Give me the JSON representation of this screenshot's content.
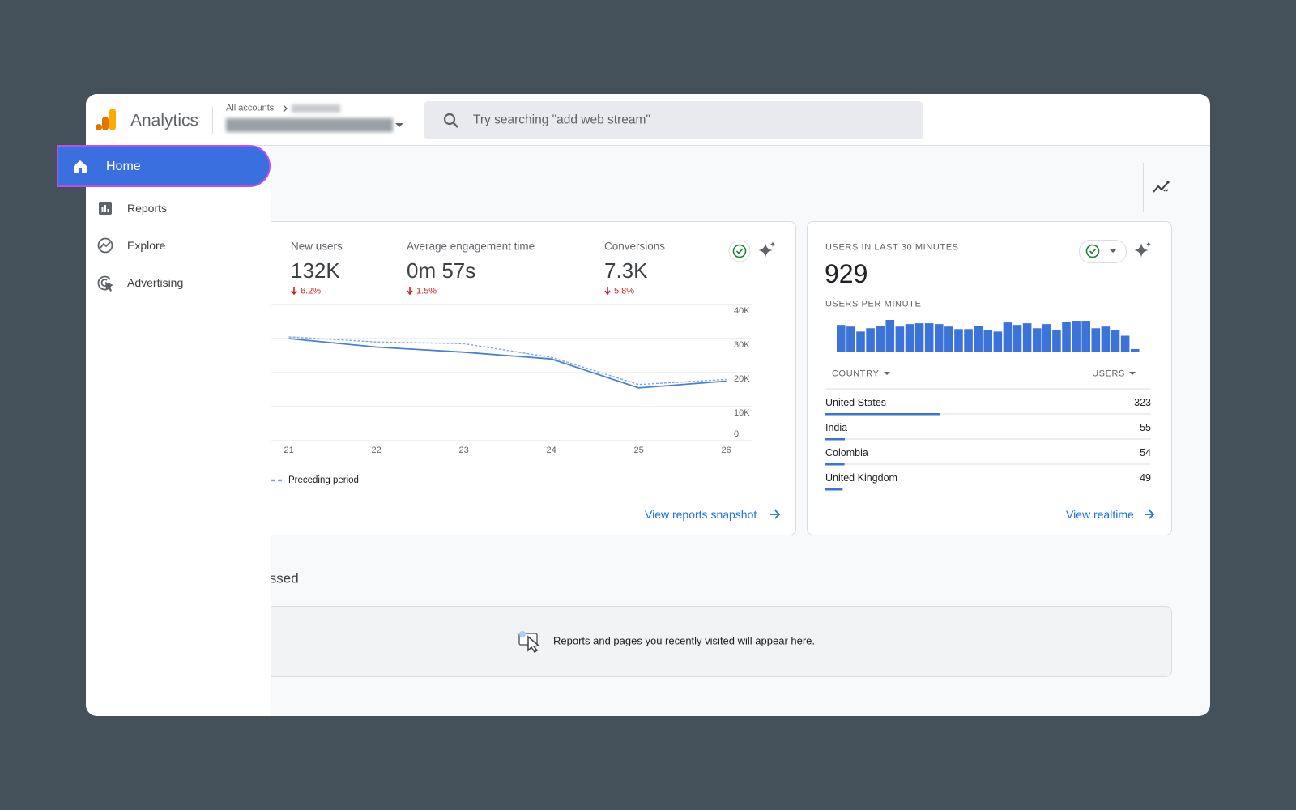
{
  "header": {
    "app_name": "Analytics",
    "breadcrumb": "All accounts",
    "search_placeholder": "Try searching \"add web stream\""
  },
  "nav": {
    "items": [
      {
        "label": "Home"
      },
      {
        "label": "Reports"
      },
      {
        "label": "Explore"
      },
      {
        "label": "Advertising"
      }
    ]
  },
  "overview_card": {
    "metrics": [
      {
        "label": "New users",
        "value": "132K",
        "change": "6.2%"
      },
      {
        "label": "Average engagement time",
        "value": "0m 57s",
        "change": "1.5%"
      },
      {
        "label": "Conversions",
        "value": "7.3K",
        "change": "5.8%"
      }
    ],
    "chart_data": {
      "type": "line",
      "x": [
        21,
        22,
        23,
        24,
        25,
        26
      ],
      "xlim": [
        20.8,
        26.3
      ],
      "ylim": [
        0,
        40000
      ],
      "yticks": [
        0,
        {
          "value": 10000,
          "label": "10K"
        },
        {
          "value": 20000,
          "label": "20K"
        },
        {
          "value": 30000,
          "label": "30K"
        },
        {
          "value": 40000,
          "label": "40K"
        }
      ],
      "grid": true,
      "series": [
        {
          "color": "#4a7fd6",
          "values": [
            30000,
            27500,
            26000,
            24000,
            15500,
            17500
          ]
        },
        {
          "name": "Preceding period",
          "color": "#7ea4e8",
          "dashed": true,
          "values": [
            30500,
            29000,
            28500,
            24500,
            16500,
            18000
          ]
        }
      ]
    },
    "link": "View reports snapshot"
  },
  "realtime_card": {
    "title": "USERS IN LAST 30 MINUTES",
    "total": "929",
    "chart_data": {
      "type": "bar",
      "title": "USERS PER MINUTE",
      "color": "#3b73d9",
      "values": [
        32,
        30,
        24,
        28,
        31,
        38,
        30,
        33,
        34,
        34,
        33,
        30,
        27,
        27,
        31,
        26,
        24,
        35,
        32,
        34,
        28,
        33,
        26,
        36,
        37,
        37,
        28,
        30,
        26,
        19,
        3
      ]
    },
    "table": {
      "columns": [
        "COUNTRY",
        "USERS"
      ],
      "rows": [
        [
          "United States",
          323
        ],
        [
          "India",
          55
        ],
        [
          "Colombia",
          54
        ],
        [
          "United Kingdom",
          49
        ]
      ]
    },
    "link": "View realtime"
  },
  "recent": {
    "title": "Recently accessed",
    "empty_message": "Reports and pages you recently visited will appear here."
  }
}
